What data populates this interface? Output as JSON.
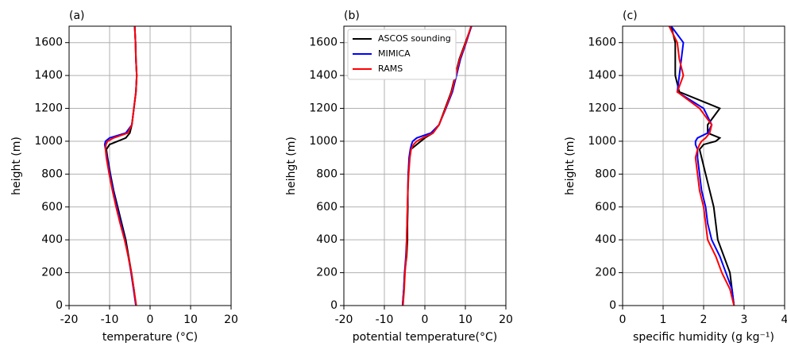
{
  "chart_data": [
    {
      "type": "line",
      "title": "(a)",
      "xlabel": "temperature (°C)",
      "ylabel": "height (m)",
      "y": [
        0,
        100,
        200,
        300,
        400,
        500,
        600,
        700,
        800,
        900,
        950,
        980,
        1000,
        1020,
        1050,
        1100,
        1200,
        1300,
        1400,
        1500,
        1600,
        1700
      ],
      "series": [
        {
          "color": "#000000",
          "values": [
            -3.5,
            -4,
            -4.6,
            -5.3,
            -6,
            -7,
            -8,
            -9,
            -9.8,
            -10.5,
            -10.8,
            -10,
            -8,
            -6,
            -5,
            -4.5,
            -4,
            -3.5,
            -3.3,
            -3.5,
            -3.6,
            -3.8
          ]
        },
        {
          "color": "#0000ff",
          "values": [
            -3.5,
            -4.1,
            -4.7,
            -5.4,
            -6.2,
            -7.2,
            -8.2,
            -9.1,
            -9.9,
            -10.6,
            -11,
            -11.2,
            -11,
            -10,
            -6,
            -4.5,
            -4,
            -3.5,
            -3.3,
            -3.5,
            -3.6,
            -3.8
          ]
        },
        {
          "color": "#ff0000",
          "values": [
            -3.4,
            -4,
            -4.6,
            -5.4,
            -6.3,
            -7.4,
            -8.4,
            -9.3,
            -10.1,
            -10.8,
            -11,
            -10.9,
            -10.5,
            -9,
            -5.5,
            -4.5,
            -4,
            -3.5,
            -3.3,
            -3.5,
            -3.6,
            -3.8
          ]
        }
      ],
      "xlim": [
        -20,
        20
      ],
      "xticks": [
        -20,
        -10,
        0,
        10,
        20
      ],
      "ylim": [
        0,
        1700
      ],
      "yticks": [
        0,
        200,
        400,
        600,
        800,
        1000,
        1200,
        1400,
        1600
      ],
      "grid": true
    },
    {
      "type": "line",
      "title": "(b)",
      "xlabel": "potential temperature(°C)",
      "ylabel": "heihgt (m)",
      "y": [
        0,
        100,
        200,
        300,
        400,
        500,
        600,
        700,
        800,
        900,
        950,
        980,
        1000,
        1020,
        1050,
        1100,
        1200,
        1300,
        1400,
        1500,
        1600,
        1700
      ],
      "series": [
        {
          "name": "ASCOS sounding",
          "color": "#000000",
          "values": [
            -5.5,
            -5.2,
            -5,
            -4.5,
            -4.3,
            -4.3,
            -4.2,
            -4.2,
            -4.1,
            -3.8,
            -3.5,
            -2,
            -1,
            0,
            2,
            3.5,
            5,
            6.5,
            7.5,
            8.5,
            10,
            11.5
          ]
        },
        {
          "name": "MIMICA",
          "color": "#0000ff",
          "values": [
            -5.5,
            -5.2,
            -5,
            -4.7,
            -4.5,
            -4.4,
            -4.3,
            -4.2,
            -4.1,
            -3.9,
            -3.6,
            -3.3,
            -3,
            -2,
            1.5,
            3.5,
            5.2,
            6.8,
            7.8,
            8.8,
            10.2,
            11.5
          ]
        },
        {
          "name": "RAMS",
          "color": "#ff0000",
          "values": [
            -5.4,
            -5.1,
            -4.9,
            -4.6,
            -4.5,
            -4.4,
            -4.3,
            -4.2,
            -4,
            -3.7,
            -3.4,
            -2.8,
            -2,
            -0.5,
            2,
            3.5,
            5.1,
            6.6,
            7.6,
            8.6,
            10.1,
            11.4
          ]
        }
      ],
      "xlim": [
        -20,
        20
      ],
      "xticks": [
        -20,
        -10,
        0,
        10,
        20
      ],
      "ylim": [
        0,
        1700
      ],
      "yticks": [
        0,
        200,
        400,
        600,
        800,
        1000,
        1200,
        1400,
        1600
      ],
      "grid": true,
      "legend": "upper left"
    },
    {
      "type": "line",
      "title": "(c)",
      "xlabel": "specific humidity (g kg⁻¹)",
      "ylabel": "height (m)",
      "y": [
        0,
        100,
        200,
        300,
        400,
        500,
        600,
        700,
        800,
        900,
        950,
        980,
        1000,
        1020,
        1050,
        1100,
        1200,
        1300,
        1400,
        1500,
        1600,
        1700
      ],
      "series": [
        {
          "color": "#000000",
          "values": [
            2.75,
            2.7,
            2.65,
            2.5,
            2.35,
            2.3,
            2.25,
            2.15,
            2.05,
            1.95,
            1.9,
            2,
            2.3,
            2.4,
            2.1,
            2.1,
            2.4,
            1.4,
            1.3,
            1.3,
            1.3,
            1.2
          ]
        },
        {
          "color": "#0000ff",
          "values": [
            2.75,
            2.7,
            2.55,
            2.4,
            2.2,
            2.1,
            2.05,
            1.95,
            1.9,
            1.85,
            1.85,
            1.8,
            1.8,
            1.85,
            2.1,
            2.2,
            2,
            1.35,
            1.4,
            1.45,
            1.5,
            1.2
          ]
        },
        {
          "color": "#ff0000",
          "values": [
            2.75,
            2.65,
            2.45,
            2.3,
            2.1,
            2.05,
            2,
            1.9,
            1.85,
            1.8,
            1.85,
            1.9,
            1.95,
            2.05,
            2.15,
            2.2,
            1.9,
            1.35,
            1.5,
            1.4,
            1.35,
            1.15
          ]
        }
      ],
      "xlim": [
        0,
        4
      ],
      "xticks": [
        0,
        1,
        2,
        3,
        4
      ],
      "ylim": [
        0,
        1700
      ],
      "yticks": [
        0,
        200,
        400,
        600,
        800,
        1000,
        1200,
        1400,
        1600
      ],
      "grid": true
    }
  ]
}
